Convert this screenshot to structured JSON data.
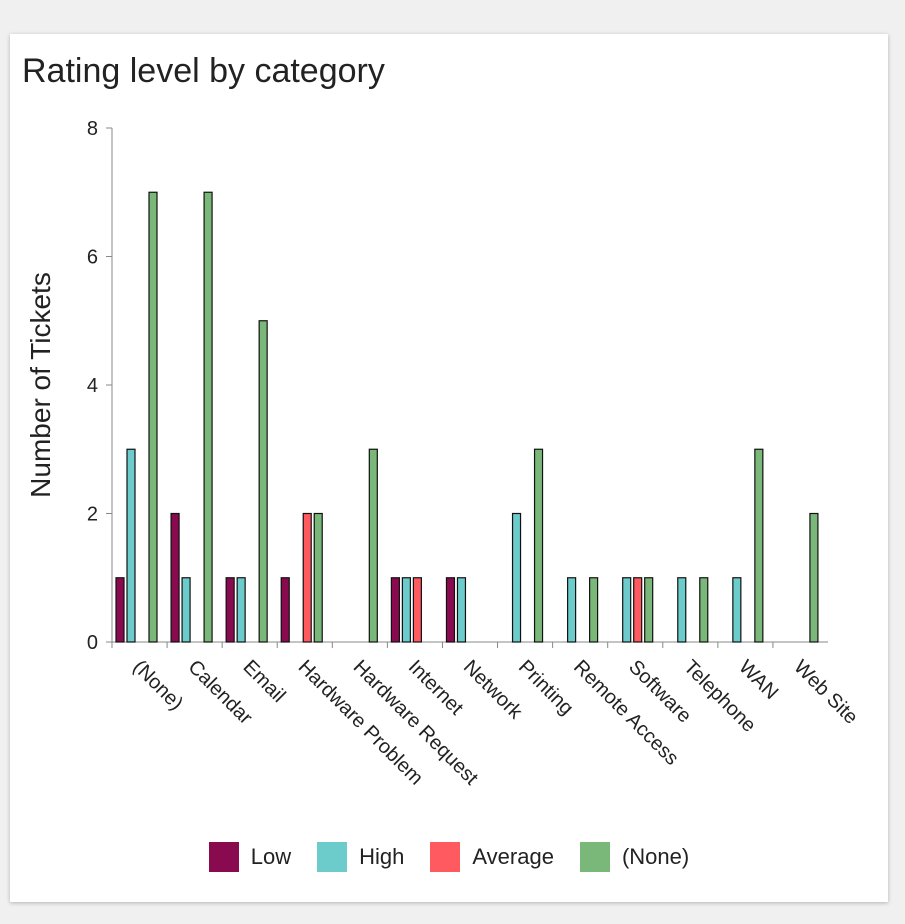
{
  "chart_data": {
    "type": "bar",
    "title": "Rating level by category",
    "xlabel": "",
    "ylabel": "Number of Tickets",
    "ylim": [
      0,
      8
    ],
    "yticks": [
      0,
      2,
      4,
      6,
      8
    ],
    "categories": [
      "(None)",
      "Calendar",
      "Email",
      "Hardware Problem",
      "Hardware Request",
      "Internet",
      "Network",
      "Printing",
      "Remote Access",
      "Software",
      "Telephone",
      "WAN",
      "Web Site"
    ],
    "series": [
      {
        "name": "Low",
        "color": "#8a0a4f",
        "values": [
          1,
          2,
          1,
          1,
          0,
          1,
          1,
          0,
          0,
          0,
          0,
          0,
          0
        ]
      },
      {
        "name": "High",
        "color": "#6ccccc",
        "values": [
          3,
          1,
          1,
          0,
          0,
          1,
          1,
          2,
          1,
          1,
          1,
          1,
          0
        ]
      },
      {
        "name": "Average",
        "color": "#ff5a5f",
        "values": [
          0,
          0,
          0,
          2,
          0,
          1,
          0,
          0,
          0,
          1,
          0,
          0,
          0
        ]
      },
      {
        "name": "(None)",
        "color": "#7ab87a",
        "values": [
          7,
          7,
          5,
          2,
          3,
          0,
          0,
          3,
          1,
          1,
          1,
          3,
          2
        ]
      }
    ],
    "legend_position": "bottom"
  }
}
